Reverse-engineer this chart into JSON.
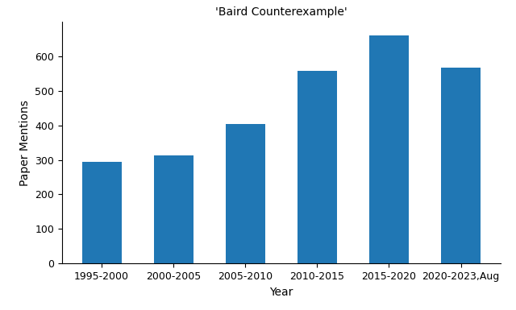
{
  "title": "'Baird Counterexample'",
  "xlabel": "Year",
  "ylabel": "Paper Mentions",
  "categories": [
    "1995-2000",
    "2000-2005",
    "2005-2010",
    "2010-2015",
    "2015-2020",
    "2020-2023,Aug"
  ],
  "values": [
    295,
    312,
    405,
    557,
    660,
    567
  ],
  "bar_color": "#2077b4",
  "ylim": [
    0,
    700
  ],
  "yticks": [
    0,
    100,
    200,
    300,
    400,
    500,
    600
  ],
  "background_color": "#ffffff",
  "title_fontsize": 10,
  "label_fontsize": 10,
  "tick_fontsize": 9,
  "bar_width": 0.55
}
